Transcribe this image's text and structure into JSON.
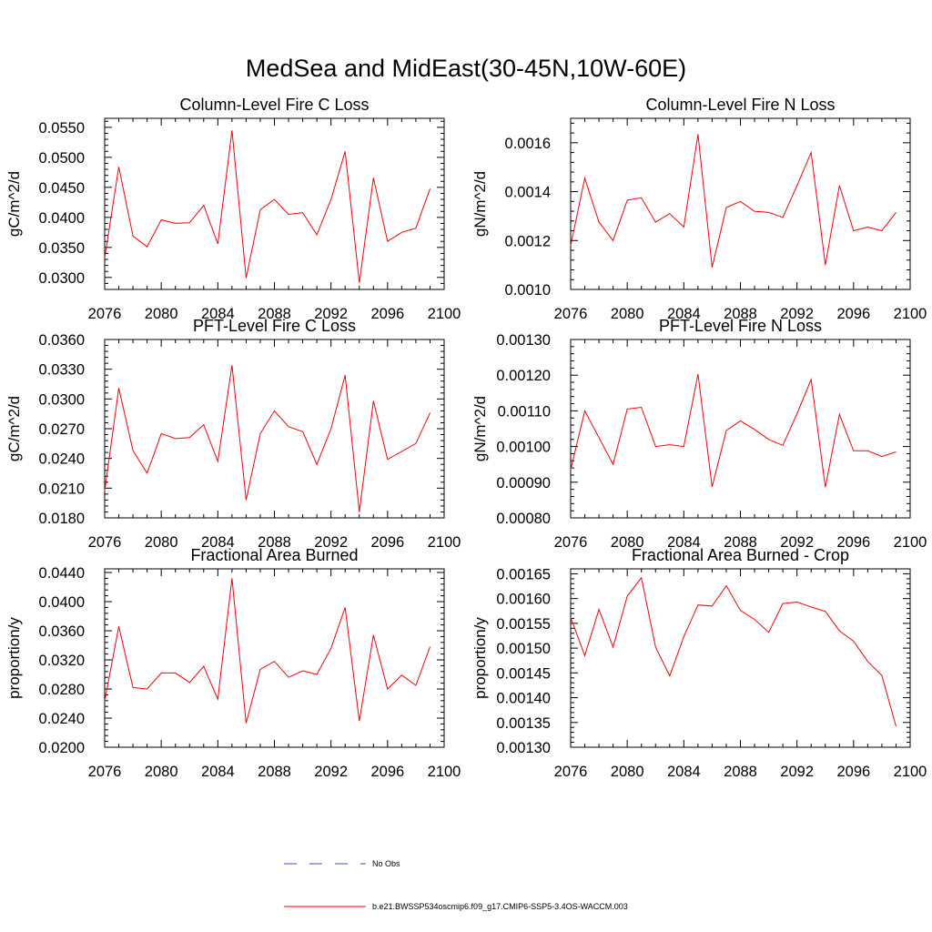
{
  "figure_title": "MedSea and MidEast(30-45N,10W-60E)",
  "colors": {
    "series": "#ff0000",
    "obs": "#3a4fd0",
    "axis": "#000000"
  },
  "legend": {
    "obs_label": "No Obs",
    "model_label": "b.e21.BWSSP534oscmip6.f09_g17.CMIP6-SSP5-3.4OS-WACCM.003"
  },
  "chart_data": [
    {
      "type": "line",
      "title": "Column-Level Fire C Loss",
      "ylabel": "gC/m^2/d",
      "xlim": [
        2076,
        2100
      ],
      "ylim": [
        0.028,
        0.0565
      ],
      "xticks": [
        2076,
        2080,
        2084,
        2088,
        2092,
        2096,
        2100
      ],
      "yticks": [
        0.03,
        0.035,
        0.04,
        0.045,
        0.05,
        0.055
      ],
      "ytick_labels": [
        "0.0300",
        "0.0350",
        "0.0400",
        "0.0450",
        "0.0500",
        "0.0550"
      ],
      "x": [
        2076,
        2077,
        2078,
        2079,
        2080,
        2081,
        2082,
        2083,
        2084,
        2085,
        2086,
        2087,
        2088,
        2089,
        2090,
        2091,
        2092,
        2093,
        2094,
        2095,
        2096,
        2097,
        2098,
        2099
      ],
      "series": [
        {
          "name": "b.e21.BWSSP534oscmip6.f09_g17.CMIP6-SSP5-3.4OS-WACCM.003",
          "values": [
            0.0332,
            0.0484,
            0.0369,
            0.0351,
            0.0396,
            0.039,
            0.0391,
            0.042,
            0.0356,
            0.0545,
            0.0299,
            0.0413,
            0.043,
            0.0405,
            0.0408,
            0.0371,
            0.043,
            0.051,
            0.0291,
            0.0466,
            0.036,
            0.0375,
            0.0382,
            0.0448
          ]
        }
      ]
    },
    {
      "type": "line",
      "title": "Column-Level Fire N Loss",
      "ylabel": "gN/m^2/d",
      "xlim": [
        2076,
        2100
      ],
      "ylim": [
        0.001,
        0.0017
      ],
      "xticks": [
        2076,
        2080,
        2084,
        2088,
        2092,
        2096,
        2100
      ],
      "yticks": [
        0.001,
        0.0012,
        0.0014,
        0.0016
      ],
      "ytick_labels": [
        "0.0010",
        "0.0012",
        "0.0014",
        "0.0016"
      ],
      "x": [
        2076,
        2077,
        2078,
        2079,
        2080,
        2081,
        2082,
        2083,
        2084,
        2085,
        2086,
        2087,
        2088,
        2089,
        2090,
        2091,
        2092,
        2093,
        2094,
        2095,
        2096,
        2097,
        2098,
        2099
      ],
      "series": [
        {
          "name": "b.e21.BWSSP534oscmip6.f09_g17.CMIP6-SSP5-3.4OS-WACCM.003",
          "values": [
            0.00118,
            0.001455,
            0.001275,
            0.0012,
            0.001365,
            0.001375,
            0.001275,
            0.00131,
            0.001255,
            0.001635,
            0.00109,
            0.001335,
            0.00136,
            0.00132,
            0.001315,
            0.001295,
            0.001425,
            0.00156,
            0.0011,
            0.001425,
            0.00124,
            0.001255,
            0.00124,
            0.001315
          ]
        }
      ]
    },
    {
      "type": "line",
      "title": "PFT-Level Fire C Loss",
      "ylabel": "gC/m^2/d",
      "xlim": [
        2076,
        2100
      ],
      "ylim": [
        0.018,
        0.036
      ],
      "xticks": [
        2076,
        2080,
        2084,
        2088,
        2092,
        2096,
        2100
      ],
      "yticks": [
        0.018,
        0.021,
        0.024,
        0.027,
        0.03,
        0.033,
        0.036
      ],
      "ytick_labels": [
        "0.0180",
        "0.0210",
        "0.0240",
        "0.0270",
        "0.0300",
        "0.0330",
        "0.0360"
      ],
      "x": [
        2076,
        2077,
        2078,
        2079,
        2080,
        2081,
        2082,
        2083,
        2084,
        2085,
        2086,
        2087,
        2088,
        2089,
        2090,
        2091,
        2092,
        2093,
        2094,
        2095,
        2096,
        2097,
        2098,
        2099
      ],
      "series": [
        {
          "name": "b.e21.BWSSP534oscmip6.f09_g17.CMIP6-SSP5-3.4OS-WACCM.003",
          "values": [
            0.0207,
            0.0311,
            0.0248,
            0.0225,
            0.0265,
            0.026,
            0.0261,
            0.0274,
            0.0237,
            0.0334,
            0.0198,
            0.0265,
            0.0288,
            0.0272,
            0.0267,
            0.0234,
            0.027,
            0.0324,
            0.0186,
            0.0298,
            0.0239,
            0.0247,
            0.0255,
            0.0286
          ]
        }
      ]
    },
    {
      "type": "line",
      "title": "PFT-Level Fire N Loss",
      "ylabel": "gN/m^2/d",
      "xlim": [
        2076,
        2100
      ],
      "ylim": [
        0.0008,
        0.0013
      ],
      "xticks": [
        2076,
        2080,
        2084,
        2088,
        2092,
        2096,
        2100
      ],
      "yticks": [
        0.0008,
        0.0009,
        0.001,
        0.0011,
        0.0012,
        0.0013
      ],
      "ytick_labels": [
        "0.00080",
        "0.00090",
        "0.00100",
        "0.00110",
        "0.00120",
        "0.00130"
      ],
      "x": [
        2076,
        2077,
        2078,
        2079,
        2080,
        2081,
        2082,
        2083,
        2084,
        2085,
        2086,
        2087,
        2088,
        2089,
        2090,
        2091,
        2092,
        2093,
        2094,
        2095,
        2096,
        2097,
        2098,
        2099
      ],
      "series": [
        {
          "name": "b.e21.BWSSP534oscmip6.f09_g17.CMIP6-SSP5-3.4OS-WACCM.003",
          "values": [
            0.000935,
            0.0011,
            0.001025,
            0.00095,
            0.001105,
            0.00111,
            0.001,
            0.001005,
            0.001,
            0.001203,
            0.000887,
            0.001045,
            0.001072,
            0.001048,
            0.00102,
            0.001003,
            0.001092,
            0.001188,
            0.000886,
            0.00109,
            0.000988,
            0.000988,
            0.000972,
            0.000985
          ]
        }
      ]
    },
    {
      "type": "line",
      "title": "Fractional Area Burned",
      "ylabel": "proportion/y",
      "xlim": [
        2076,
        2100
      ],
      "ylim": [
        0.02,
        0.0445
      ],
      "xticks": [
        2076,
        2080,
        2084,
        2088,
        2092,
        2096,
        2100
      ],
      "yticks": [
        0.02,
        0.024,
        0.028,
        0.032,
        0.036,
        0.04,
        0.044
      ],
      "ytick_labels": [
        "0.0200",
        "0.0240",
        "0.0280",
        "0.0320",
        "0.0360",
        "0.0400",
        "0.0440"
      ],
      "x": [
        2076,
        2077,
        2078,
        2079,
        2080,
        2081,
        2082,
        2083,
        2084,
        2085,
        2086,
        2087,
        2088,
        2089,
        2090,
        2091,
        2092,
        2093,
        2094,
        2095,
        2096,
        2097,
        2098,
        2099
      ],
      "series": [
        {
          "name": "b.e21.BWSSP534oscmip6.f09_g17.CMIP6-SSP5-3.4OS-WACCM.003",
          "values": [
            0.0263,
            0.0366,
            0.0282,
            0.028,
            0.0302,
            0.0302,
            0.0289,
            0.0311,
            0.0266,
            0.0432,
            0.0233,
            0.0307,
            0.0318,
            0.0296,
            0.0305,
            0.03,
            0.0336,
            0.0392,
            0.0236,
            0.0354,
            0.028,
            0.0299,
            0.0285,
            0.0338
          ]
        }
      ]
    },
    {
      "type": "line",
      "title": "Fractional Area Burned - Crop",
      "ylabel": "proportion/y",
      "xlim": [
        2076,
        2100
      ],
      "ylim": [
        0.0013,
        0.00166
      ],
      "xticks": [
        2076,
        2080,
        2084,
        2088,
        2092,
        2096,
        2100
      ],
      "yticks": [
        0.0013,
        0.00135,
        0.0014,
        0.00145,
        0.0015,
        0.00155,
        0.0016,
        0.00165
      ],
      "ytick_labels": [
        "0.00130",
        "0.00135",
        "0.00140",
        "0.00145",
        "0.00150",
        "0.00155",
        "0.00160",
        "0.00165"
      ],
      "x": [
        2076,
        2077,
        2078,
        2079,
        2080,
        2081,
        2082,
        2083,
        2084,
        2085,
        2086,
        2087,
        2088,
        2089,
        2090,
        2091,
        2092,
        2093,
        2094,
        2095,
        2096,
        2097,
        2098,
        2099
      ],
      "series": [
        {
          "name": "b.e21.BWSSP534oscmip6.f09_g17.CMIP6-SSP5-3.4OS-WACCM.003",
          "values": [
            0.001562,
            0.001485,
            0.001578,
            0.001502,
            0.001605,
            0.001642,
            0.001502,
            0.001444,
            0.001523,
            0.001587,
            0.001585,
            0.001626,
            0.001576,
            0.001558,
            0.001532,
            0.00159,
            0.001593,
            0.001583,
            0.001574,
            0.001535,
            0.001514,
            0.001473,
            0.001445,
            0.001342
          ]
        }
      ]
    }
  ]
}
